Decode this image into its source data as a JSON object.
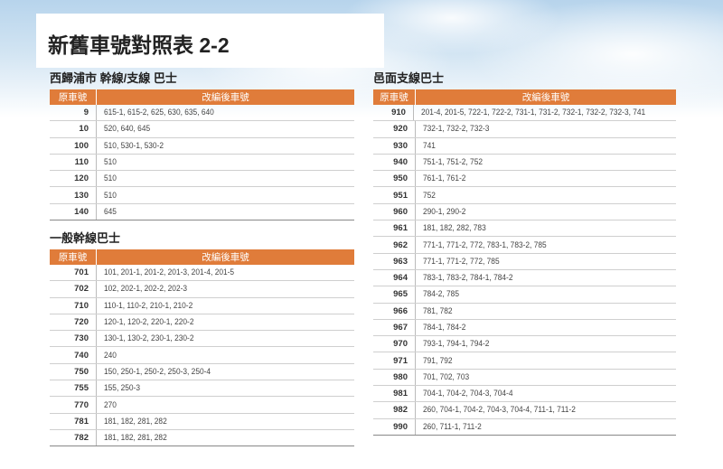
{
  "title": "新舊車號對照表 2-2",
  "sections": [
    {
      "heading": "西歸浦市 幹線/支線 巴士",
      "columns": [
        "原車號",
        "改編後車號"
      ],
      "rows": [
        [
          "9",
          "615-1, 615-2, 625, 630, 635, 640"
        ],
        [
          "10",
          "520, 640, 645"
        ],
        [
          "100",
          "510, 530-1, 530-2"
        ],
        [
          "110",
          "510"
        ],
        [
          "120",
          "510"
        ],
        [
          "130",
          "510"
        ],
        [
          "140",
          "645"
        ]
      ]
    },
    {
      "heading": "一般幹線巴士",
      "columns": [
        "原車號",
        "改編後車號"
      ],
      "rows": [
        [
          "701",
          "101, 201-1, 201-2, 201-3, 201-4, 201-5"
        ],
        [
          "702",
          "102, 202-1, 202-2, 202-3"
        ],
        [
          "710",
          "110-1, 110-2, 210-1, 210-2"
        ],
        [
          "720",
          "120-1, 120-2, 220-1, 220-2"
        ],
        [
          "730",
          "130-1, 130-2, 230-1, 230-2"
        ],
        [
          "740",
          "240"
        ],
        [
          "750",
          "150, 250-1, 250-2, 250-3, 250-4"
        ],
        [
          "755",
          "155, 250-3"
        ],
        [
          "770",
          "270"
        ],
        [
          "781",
          "181, 182, 281, 282"
        ],
        [
          "782",
          "181, 182, 281, 282"
        ]
      ]
    },
    {
      "heading": "邑面支線巴士",
      "columns": [
        "原車號",
        "改編後車號"
      ],
      "rows": [
        [
          "910",
          "201-4, 201-5, 722-1, 722-2, 731-1, 731-2, 732-1, 732-2, 732-3, 741"
        ],
        [
          "920",
          "732-1, 732-2, 732-3"
        ],
        [
          "930",
          "741"
        ],
        [
          "940",
          "751-1, 751-2, 752"
        ],
        [
          "950",
          "761-1, 761-2"
        ],
        [
          "951",
          "752"
        ],
        [
          "960",
          "290-1, 290-2"
        ],
        [
          "961",
          "181, 182, 282, 783"
        ],
        [
          "962",
          "771-1, 771-2, 772, 783-1, 783-2, 785"
        ],
        [
          "963",
          "771-1, 771-2, 772, 785"
        ],
        [
          "964",
          "783-1, 783-2, 784-1, 784-2"
        ],
        [
          "965",
          "784-2, 785"
        ],
        [
          "966",
          "781, 782"
        ],
        [
          "967",
          "784-1, 784-2"
        ],
        [
          "970",
          "793-1, 794-1, 794-2"
        ],
        [
          "971",
          "791, 792"
        ],
        [
          "980",
          "701, 702, 703"
        ],
        [
          "981",
          "704-1, 704-2, 704-3, 704-4"
        ],
        [
          "982",
          "260, 704-1, 704-2, 704-3, 704-4, 711-1, 711-2"
        ],
        [
          "990",
          "260, 711-1, 711-2"
        ]
      ]
    }
  ]
}
